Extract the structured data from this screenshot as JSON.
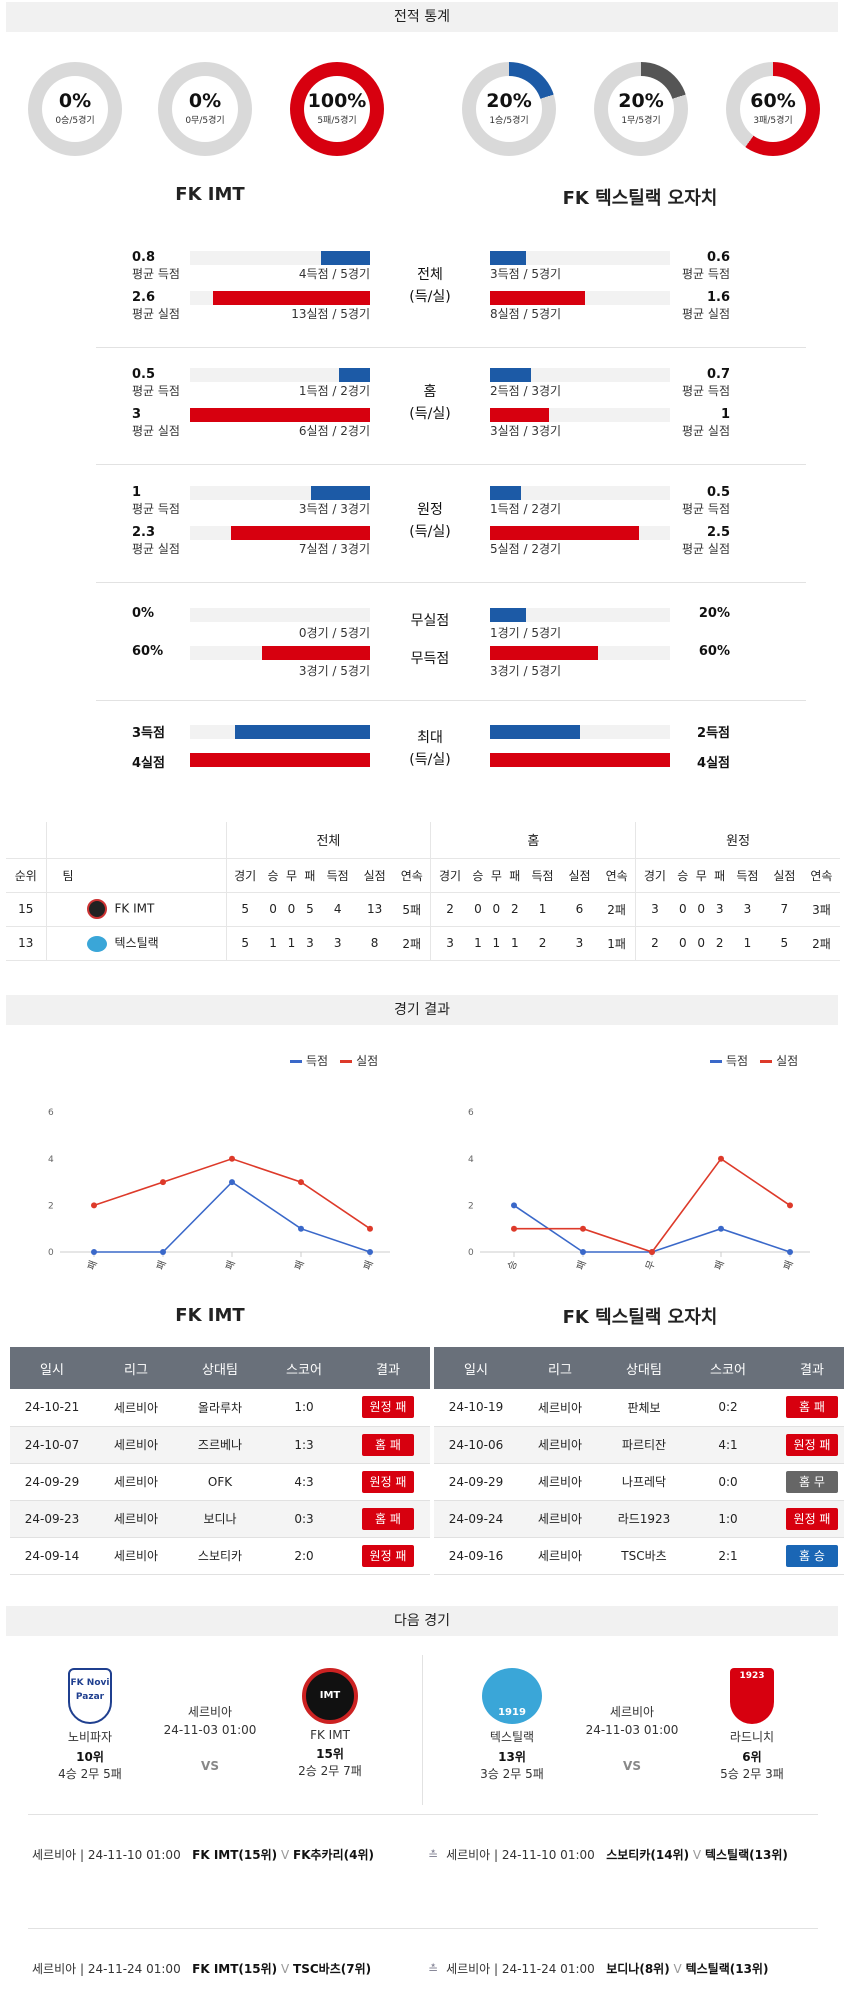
{
  "sections": {
    "stats": "전적 통계",
    "results": "경기 결과",
    "next": "다음 경기"
  },
  "donuts": [
    {
      "pct": "0%",
      "sub": "0승/5경기",
      "value": 0,
      "color": "#1c5aa6"
    },
    {
      "pct": "0%",
      "sub": "0무/5경기",
      "value": 0,
      "color": "#555555"
    },
    {
      "pct": "100%",
      "sub": "5패/5경기",
      "value": 100,
      "color": "#d7000f"
    },
    {
      "pct": "20%",
      "sub": "1승/5경기",
      "value": 20,
      "color": "#1c5aa6"
    },
    {
      "pct": "20%",
      "sub": "1무/5경기",
      "value": 20,
      "color": "#555555"
    },
    {
      "pct": "60%",
      "sub": "3패/5경기",
      "value": 60,
      "color": "#d7000f"
    }
  ],
  "teams": {
    "home": "FK IMT",
    "away": "FK 텍스틸랙 오자치"
  },
  "labels": {
    "avg_score": "평균 득점",
    "avg_concede": "평균 실점"
  },
  "stat_groups": [
    {
      "center": [
        "전체",
        "(득/실)"
      ],
      "home": [
        {
          "val": "0.8",
          "cap": "4득점 / 5경기",
          "frac": 0.27
        },
        {
          "val": "2.6",
          "cap": "13실점 / 5경기",
          "frac": 0.87
        }
      ],
      "away": [
        {
          "val": "0.6",
          "cap": "3득점 / 5경기",
          "frac": 0.2
        },
        {
          "val": "1.6",
          "cap": "8실점 / 5경기",
          "frac": 0.53
        }
      ]
    },
    {
      "center": [
        "홈",
        "(득/실)"
      ],
      "home": [
        {
          "val": "0.5",
          "cap": "1득점 / 2경기",
          "frac": 0.17
        },
        {
          "val": "3",
          "cap": "6실점 / 2경기",
          "frac": 1.0
        }
      ],
      "away": [
        {
          "val": "0.7",
          "cap": "2득점 / 3경기",
          "frac": 0.23
        },
        {
          "val": "1",
          "cap": "3실점 / 3경기",
          "frac": 0.33
        }
      ]
    },
    {
      "center": [
        "원정",
        "(득/실)"
      ],
      "home": [
        {
          "val": "1",
          "cap": "3득점 / 3경기",
          "frac": 0.33
        },
        {
          "val": "2.3",
          "cap": "7실점 / 3경기",
          "frac": 0.77
        }
      ],
      "away": [
        {
          "val": "0.5",
          "cap": "1득점 / 2경기",
          "frac": 0.17
        },
        {
          "val": "2.5",
          "cap": "5실점 / 2경기",
          "frac": 0.83
        }
      ]
    }
  ],
  "clean": {
    "label": "무실점",
    "home_val": "0%",
    "home_cap": "0경기 / 5경기",
    "home_frac": 0,
    "away_val": "20%",
    "away_cap": "1경기 / 5경기",
    "away_frac": 0.2
  },
  "noscore": {
    "label": "무득점",
    "home_val": "60%",
    "home_cap": "3경기 / 5경기",
    "home_frac": 0.6,
    "away_val": "60%",
    "away_cap": "3경기 / 5경기",
    "away_frac": 0.6
  },
  "max": {
    "label": [
      "최대",
      "(득/실)"
    ],
    "home_score": "3득점",
    "home_concede": "4실점",
    "away_score": "2득점",
    "away_concede": "4실점",
    "home_score_frac": 0.75,
    "home_concede_frac": 1.0,
    "away_score_frac": 0.5,
    "away_concede_frac": 1.0
  },
  "standings": {
    "groups": [
      "전체",
      "홈",
      "원정"
    ],
    "rank_h": "순위",
    "team_h": "팀",
    "cols": [
      "경기",
      "승",
      "무",
      "패",
      "득점",
      "실점",
      "연속"
    ],
    "rows": [
      {
        "rank": "15",
        "team": "FK IMT",
        "all": [
          "5",
          "0",
          "0",
          "5",
          "4",
          "13",
          "5패"
        ],
        "home": [
          "2",
          "0",
          "0",
          "2",
          "1",
          "6",
          "2패"
        ],
        "away": [
          "3",
          "0",
          "0",
          "3",
          "3",
          "7",
          "3패"
        ]
      },
      {
        "rank": "13",
        "team": "텍스틸랙",
        "all": [
          "5",
          "1",
          "1",
          "3",
          "3",
          "8",
          "2패"
        ],
        "home": [
          "3",
          "1",
          "1",
          "1",
          "2",
          "3",
          "1패"
        ],
        "away": [
          "2",
          "0",
          "0",
          "2",
          "1",
          "5",
          "2패"
        ]
      }
    ]
  },
  "legend": {
    "score": "득점",
    "concede": "실점"
  },
  "chart_data": [
    {
      "type": "line",
      "x": [
        "패",
        "패",
        "패",
        "패",
        "패"
      ],
      "yticks": [
        "0",
        "2",
        "4",
        "6"
      ],
      "ylim": [
        0,
        6
      ],
      "series": [
        {
          "name": "득점",
          "values": [
            0,
            0,
            3,
            1,
            0
          ],
          "color": "#3a68c9"
        },
        {
          "name": "실점",
          "values": [
            2,
            3,
            4,
            3,
            1
          ],
          "color": "#dd3a2a"
        }
      ]
    },
    {
      "type": "line",
      "x": [
        "승",
        "패",
        "무",
        "패",
        "패"
      ],
      "yticks": [
        "0",
        "2",
        "4",
        "6"
      ],
      "ylim": [
        0,
        6
      ],
      "series": [
        {
          "name": "득점",
          "values": [
            2,
            0,
            0,
            1,
            0
          ],
          "color": "#3a68c9"
        },
        {
          "name": "실점",
          "values": [
            1,
            1,
            0,
            4,
            2
          ],
          "color": "#dd3a2a"
        }
      ]
    }
  ],
  "match_headers": [
    "일시",
    "리그",
    "상대팀",
    "스코어",
    "결과"
  ],
  "matches_home": [
    {
      "date": "24-10-21",
      "league": "세르비아",
      "opp": "올라루차",
      "score": "1:0",
      "result": "원정 패",
      "color": "red"
    },
    {
      "date": "24-10-07",
      "league": "세르비아",
      "opp": "즈르베나",
      "score": "1:3",
      "result": "홈 패",
      "color": "red"
    },
    {
      "date": "24-09-29",
      "league": "세르비아",
      "opp": "OFK",
      "score": "4:3",
      "result": "원정 패",
      "color": "red"
    },
    {
      "date": "24-09-23",
      "league": "세르비아",
      "opp": "보디나",
      "score": "0:3",
      "result": "홈 패",
      "color": "red"
    },
    {
      "date": "24-09-14",
      "league": "세르비아",
      "opp": "스보티카",
      "score": "2:0",
      "result": "원정 패",
      "color": "red"
    }
  ],
  "matches_away": [
    {
      "date": "24-10-19",
      "league": "세르비아",
      "opp": "판체보",
      "score": "0:2",
      "result": "홈 패",
      "color": "red"
    },
    {
      "date": "24-10-06",
      "league": "세르비아",
      "opp": "파르티잔",
      "score": "4:1",
      "result": "원정 패",
      "color": "red"
    },
    {
      "date": "24-09-29",
      "league": "세르비아",
      "opp": "나프레닥",
      "score": "0:0",
      "result": "홈 무",
      "color": "gray"
    },
    {
      "date": "24-09-24",
      "league": "세르비아",
      "opp": "라드1923",
      "score": "1:0",
      "result": "원정 패",
      "color": "red"
    },
    {
      "date": "24-09-16",
      "league": "세르비아",
      "opp": "TSC바츠",
      "score": "2:1",
      "result": "홈 승",
      "color": "blue"
    }
  ],
  "next_games": [
    {
      "league": "세르비아",
      "time": "24-11-03 01:00",
      "vs": "VS",
      "left": {
        "name": "노비파자",
        "rank": "10위",
        "rec": "4승 2무 5패",
        "logo_text": "FK Novi Pazar"
      },
      "right": {
        "name": "FK IMT",
        "rank": "15위",
        "rec": "2승 2무 7패",
        "logo_text": "IMT"
      }
    },
    {
      "league": "세르비아",
      "time": "24-11-03 01:00",
      "vs": "VS",
      "left": {
        "name": "텍스틸랙",
        "rank": "13위",
        "rec": "3승 2무 5패",
        "logo_text": "1919"
      },
      "right": {
        "name": "라드니치",
        "rank": "6위",
        "rec": "5승 2무 3패",
        "logo_text": "1923"
      }
    }
  ],
  "future": [
    {
      "left": {
        "meta": "세르비아 | 24-11-10 01:00",
        "a": "FK IMT(15위)",
        "b": "FK추카리(4위)"
      },
      "right": {
        "meta": "세르비아 | 24-11-10 01:00",
        "a": "스보티카(14위)",
        "b": "텍스틸랙(13위)"
      }
    },
    {
      "left": {
        "meta": "세르비아 | 24-11-24 01:00",
        "a": "FK IMT(15위)",
        "b": "TSC바츠(7위)"
      },
      "right": {
        "meta": "세르비아 | 24-11-24 01:00",
        "a": "보디나(8위)",
        "b": "텍스틸랙(13위)"
      }
    }
  ]
}
